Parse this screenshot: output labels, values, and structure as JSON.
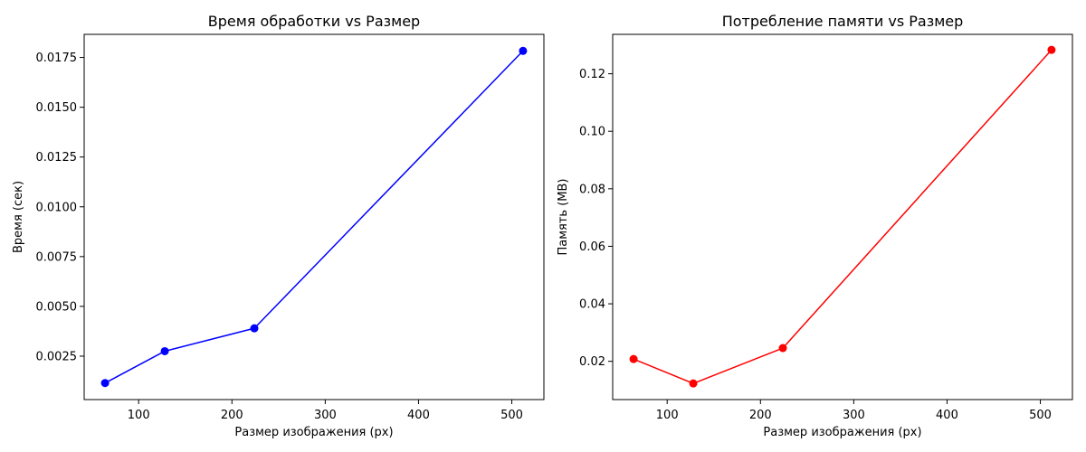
{
  "chart_data": [
    {
      "type": "line",
      "title": "Время обработки vs Размер",
      "xlabel": "Размер изображения (px)",
      "ylabel": "Время (сек)",
      "color": "#0000ff",
      "marker": "circle",
      "grid": false,
      "xlim": [
        41.6,
        534.4
      ],
      "ylim": [
        0.00032,
        0.01866
      ],
      "x_ticks": [
        100,
        200,
        300,
        400,
        500
      ],
      "x_tick_labels": [
        "100",
        "200",
        "300",
        "400",
        "500"
      ],
      "y_ticks": [
        0.0025,
        0.005,
        0.0075,
        0.01,
        0.0125,
        0.015,
        0.0175
      ],
      "y_tick_labels": [
        "0.0025",
        "0.0050",
        "0.0075",
        "0.0100",
        "0.0125",
        "0.0150",
        "0.0175"
      ],
      "series": [
        {
          "x": [
            64,
            128,
            224,
            512
          ],
          "y": [
            0.00115,
            0.00275,
            0.0039,
            0.01783
          ]
        }
      ]
    },
    {
      "type": "line",
      "title": "Потребление памяти vs Размер",
      "xlabel": "Размер изображения (px)",
      "ylabel": "Память (MB)",
      "color": "#ff0000",
      "marker": "circle",
      "grid": false,
      "xlim": [
        41.6,
        534.4
      ],
      "ylim": [
        0.0067,
        0.1337
      ],
      "x_ticks": [
        100,
        200,
        300,
        400,
        500
      ],
      "x_tick_labels": [
        "100",
        "200",
        "300",
        "400",
        "500"
      ],
      "y_ticks": [
        0.02,
        0.04,
        0.06,
        0.08,
        0.1,
        0.12
      ],
      "y_tick_labels": [
        "0.02",
        "0.04",
        "0.06",
        "0.08",
        "0.10",
        "0.12"
      ],
      "series": [
        {
          "x": [
            64,
            128,
            224,
            512
          ],
          "y": [
            0.0208,
            0.0123,
            0.0246,
            0.1283
          ]
        }
      ]
    }
  ]
}
